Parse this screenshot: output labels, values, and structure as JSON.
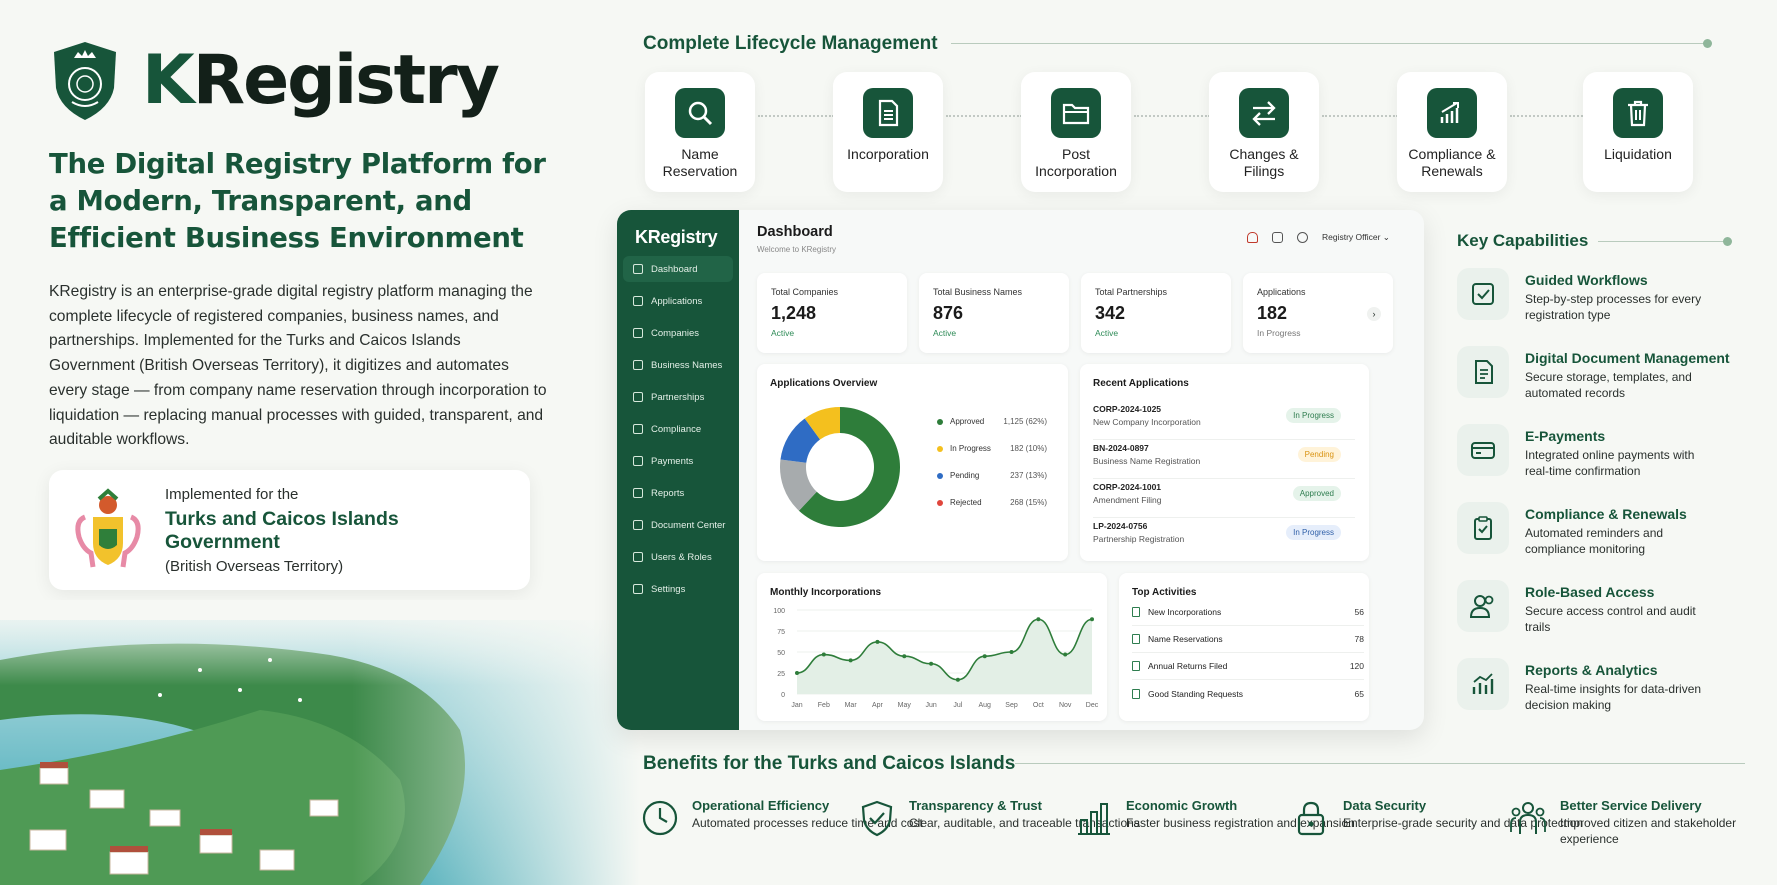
{
  "brand": {
    "name_k": "K",
    "name_rest": "Registry"
  },
  "headline": "The Digital Registry Platform for a Modern, Transparent, and Efficient Business Environment",
  "intro": "KRegistry is an enterprise-grade digital registry platform managing the complete lifecycle of registered companies, business names, and partnerships. Implemented for the Turks and Caicos Islands Government (British Overseas Territory), it digitizes and automates every stage — from company name reservation through incorporation to liquidation — replacing manual processes with guided, transparent, and auditable workflows.",
  "implemented": {
    "pre": "Implemented for the",
    "gov": "Turks and Caicos Islands Government",
    "sub": "(British Overseas Territory)"
  },
  "lifecycle": {
    "title": "Complete Lifecycle Management",
    "stages": [
      {
        "label": "Name Reservation",
        "icon": "search-icon"
      },
      {
        "label": "Incorporation",
        "icon": "document-icon"
      },
      {
        "label": "Post Incorporation",
        "icon": "folder-icon"
      },
      {
        "label": "Changes & Filings",
        "icon": "swap-arrows-icon"
      },
      {
        "label": "Compliance & Renewals",
        "icon": "chart-growth-icon"
      },
      {
        "label": "Liquidation",
        "icon": "trash-icon"
      }
    ]
  },
  "dashboard": {
    "logo": "KRegistry",
    "title": "Dashboard",
    "welcome": "Welcome to KRegistry",
    "user": "Registry Officer ⌄",
    "nav": [
      "Dashboard",
      "Applications",
      "Companies",
      "Business Names",
      "Partnerships",
      "Compliance",
      "Payments",
      "Reports",
      "Document Center",
      "Users & Roles",
      "Settings"
    ],
    "stats": [
      {
        "label": "Total Companies",
        "value": "1,248",
        "sub": "Active"
      },
      {
        "label": "Total Business Names",
        "value": "876",
        "sub": "Active"
      },
      {
        "label": "Total Partnerships",
        "value": "342",
        "sub": "Active"
      },
      {
        "label": "Applications",
        "value": "182",
        "sub": "In Progress"
      }
    ],
    "overview": {
      "title": "Applications Overview",
      "legend": [
        {
          "name": "Approved",
          "value": "1,125 (62%)",
          "color": "#2e7d3a"
        },
        {
          "name": "In Progress",
          "value": "182 (10%)",
          "color": "#f4c01e"
        },
        {
          "name": "Pending",
          "value": "237 (13%)",
          "color": "#2f6cc4"
        },
        {
          "name": "Rejected",
          "value": "268 (15%)",
          "color": "#e0463c"
        }
      ]
    },
    "recent": {
      "title": "Recent Applications",
      "rows": [
        {
          "id": "CORP-2024-1025",
          "type": "New Company Incorporation",
          "status": "In Progress"
        },
        {
          "id": "BN-2024-0897",
          "type": "Business Name Registration",
          "status": "Pending"
        },
        {
          "id": "CORP-2024-1001",
          "type": "Amendment Filing",
          "status": "Approved"
        },
        {
          "id": "LP-2024-0756",
          "type": "Partnership Registration",
          "status": "In Progress"
        }
      ]
    },
    "monthly": {
      "title": "Monthly Incorporations",
      "yticks": [
        "100",
        "75",
        "50",
        "25",
        "0"
      ],
      "months": [
        "Jan",
        "Feb",
        "Mar",
        "Apr",
        "May",
        "Jun",
        "Jul",
        "Aug",
        "Sep",
        "Oct",
        "Nov",
        "Dec"
      ]
    },
    "activities": {
      "title": "Top Activities",
      "rows": [
        {
          "name": "New Incorporations",
          "value": "56"
        },
        {
          "name": "Name Reservations",
          "value": "78"
        },
        {
          "name": "Annual Returns Filed",
          "value": "120"
        },
        {
          "name": "Good Standing Requests",
          "value": "65"
        }
      ]
    }
  },
  "chart_data": {
    "type": "line",
    "title": "Monthly Incorporations",
    "x": [
      "Jan",
      "Feb",
      "Mar",
      "Apr",
      "May",
      "Jun",
      "Jul",
      "Aug",
      "Sep",
      "Oct",
      "Nov",
      "Dec"
    ],
    "values": [
      25,
      47,
      40,
      62,
      45,
      36,
      17,
      45,
      50,
      89,
      47,
      89
    ],
    "ylim": [
      0,
      100
    ]
  },
  "capabilities": {
    "title": "Key Capabilities",
    "items": [
      {
        "title": "Guided Workflows",
        "desc": "Step-by-step processes for every registration type"
      },
      {
        "title": "Digital Document Management",
        "desc": "Secure storage, templates, and automated records"
      },
      {
        "title": "E-Payments",
        "desc": "Integrated online payments with real-time confirmation"
      },
      {
        "title": "Compliance & Renewals",
        "desc": "Automated reminders and compliance monitoring"
      },
      {
        "title": "Role-Based Access",
        "desc": "Secure access control and audit trails"
      },
      {
        "title": "Reports & Analytics",
        "desc": "Real-time insights for data-driven decision making"
      }
    ]
  },
  "benefits": {
    "title": "Benefits for the Turks and Caicos Islands",
    "items": [
      {
        "title": "Operational Efficiency",
        "desc": "Automated processes reduce time and cost"
      },
      {
        "title": "Transparency & Trust",
        "desc": "Clear, auditable, and traceable transactions"
      },
      {
        "title": "Economic Growth",
        "desc": "Faster business registration and expansion"
      },
      {
        "title": "Data Security",
        "desc": "Enterprise-grade security and data protection"
      },
      {
        "title": "Better Service Delivery",
        "desc": "Improved citizen and stakeholder experience"
      }
    ]
  },
  "colors": {
    "brand": "#17553a",
    "background": "#f6f8f4"
  }
}
